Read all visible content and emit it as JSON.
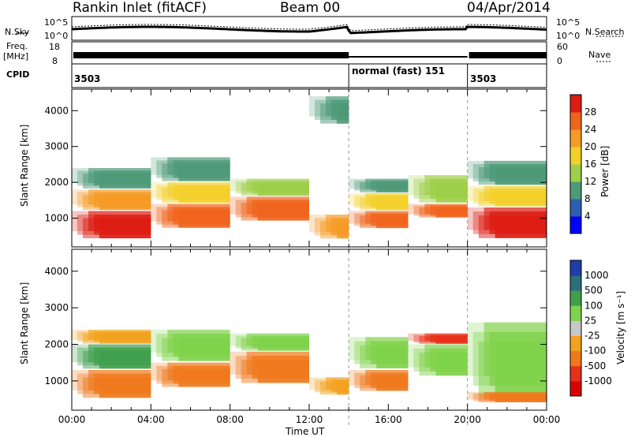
{
  "header": {
    "station": "Rankin Inlet (fitACF)",
    "beam": "Beam 00",
    "date": "04/Apr/2014"
  },
  "top_panel": {
    "nsky_label": "N.Sky",
    "nsearch_label": "N.Search",
    "left_ticks": [
      "10^5",
      "10^0"
    ],
    "right_ticks": [
      "10^5",
      "10^0"
    ],
    "freq_label_1": "Freq.",
    "freq_label_2": "[MHz]",
    "freq_ticks": [
      "18",
      "8"
    ],
    "nave_label": "Nave",
    "nave_ticks": [
      "60",
      "0"
    ],
    "cpid_label": "CPID",
    "cpid_segments": [
      {
        "label": "3503",
        "start_h": 0,
        "end_h": 14.0
      },
      {
        "label": "normal (fast) 151",
        "start_h": 14.0,
        "end_h": 20.0
      },
      {
        "label": "3503",
        "start_h": 20.0,
        "end_h": 24.0
      }
    ]
  },
  "chart_data": [
    {
      "type": "heatmap",
      "title": "",
      "xlabel": "Time UT",
      "ylabel": "Slant Range [km]",
      "xlim": [
        0,
        24
      ],
      "ylim": [
        200,
        4600
      ],
      "x_ticks": [
        "00:00",
        "04:00",
        "08:00",
        "12:00",
        "16:00",
        "20:00",
        "00:00"
      ],
      "y_ticks": [
        1000,
        2000,
        3000,
        4000
      ],
      "colorbar": {
        "label": "Power [dB]",
        "range": [
          0,
          32
        ],
        "ticks": [
          4,
          8,
          12,
          16,
          20,
          24,
          28
        ],
        "colors": [
          "#0000ff",
          "#2f5fb0",
          "#4d9a78",
          "#9ecf4a",
          "#f2d02a",
          "#f59b26",
          "#f0641c",
          "#dd1b12"
        ]
      },
      "echo_bands": [
        {
          "x0": 0.0,
          "x1": 4.0,
          "r0": 400,
          "r1": 1200,
          "value": 28
        },
        {
          "x0": 0.0,
          "x1": 4.0,
          "r0": 1200,
          "r1": 1800,
          "value": 20
        },
        {
          "x0": 0.0,
          "x1": 4.0,
          "r0": 1800,
          "r1": 2400,
          "value": 11
        },
        {
          "x0": 4.0,
          "x1": 8.0,
          "r0": 700,
          "r1": 1400,
          "value": 27
        },
        {
          "x0": 4.0,
          "x1": 8.0,
          "r0": 1400,
          "r1": 2000,
          "value": 17
        },
        {
          "x0": 4.0,
          "x1": 8.0,
          "r0": 2000,
          "r1": 2700,
          "value": 9
        },
        {
          "x0": 8.0,
          "x1": 12.0,
          "r0": 900,
          "r1": 1600,
          "value": 26
        },
        {
          "x0": 8.0,
          "x1": 12.0,
          "r0": 1600,
          "r1": 2100,
          "value": 14
        },
        {
          "x0": 12.0,
          "x1": 14.0,
          "r0": 400,
          "r1": 1100,
          "value": 20
        },
        {
          "x0": 12.0,
          "x1": 14.0,
          "r0": 3600,
          "r1": 4400,
          "value": 8
        },
        {
          "x0": 14.0,
          "x1": 17.0,
          "r0": 700,
          "r1": 1200,
          "value": 27
        },
        {
          "x0": 14.0,
          "x1": 17.0,
          "r0": 1200,
          "r1": 1700,
          "value": 17
        },
        {
          "x0": 14.0,
          "x1": 17.0,
          "r0": 1700,
          "r1": 2100,
          "value": 8
        },
        {
          "x0": 17.0,
          "x1": 20.0,
          "r0": 1000,
          "r1": 1400,
          "value": 25
        },
        {
          "x0": 17.0,
          "x1": 20.0,
          "r0": 1400,
          "r1": 2200,
          "value": 12
        },
        {
          "x0": 20.0,
          "x1": 24.0,
          "r0": 400,
          "r1": 1300,
          "value": 29
        },
        {
          "x0": 20.0,
          "x1": 24.0,
          "r0": 1300,
          "r1": 1900,
          "value": 18
        },
        {
          "x0": 20.0,
          "x1": 24.0,
          "r0": 1900,
          "r1": 2600,
          "value": 9
        }
      ]
    },
    {
      "type": "heatmap",
      "title": "",
      "xlabel": "Time UT",
      "ylabel": "Slant Range [km]",
      "xlim": [
        0,
        24
      ],
      "ylim": [
        200,
        4600
      ],
      "x_ticks": [
        "00:00",
        "04:00",
        "08:00",
        "12:00",
        "16:00",
        "20:00",
        "00:00"
      ],
      "y_ticks": [
        1000,
        2000,
        3000,
        4000
      ],
      "colorbar": {
        "label": "Velocity [m s⁻¹]",
        "tick_labels": [
          "1000",
          "500",
          "100",
          "25",
          "-25",
          "-100",
          "-500",
          "-1000"
        ],
        "colors": [
          "#1e3ea8",
          "#2d6f78",
          "#3fa04c",
          "#7fd24a",
          "#c8c8c8",
          "#f2a21e",
          "#f0781c",
          "#e83018",
          "#dd0000"
        ]
      },
      "echo_bands": [
        {
          "x0": 0.0,
          "x1": 4.0,
          "r0": 500,
          "r1": 1300,
          "value_class": "-100"
        },
        {
          "x0": 0.0,
          "x1": 4.0,
          "r0": 1300,
          "r1": 2000,
          "value_class": "100"
        },
        {
          "x0": 0.0,
          "x1": 4.0,
          "r0": 2000,
          "r1": 2400,
          "value_class": "-25"
        },
        {
          "x0": 4.0,
          "x1": 8.0,
          "r0": 800,
          "r1": 1500,
          "value_class": "-100"
        },
        {
          "x0": 4.0,
          "x1": 8.0,
          "r0": 1500,
          "r1": 2400,
          "value_class": "25"
        },
        {
          "x0": 8.0,
          "x1": 12.0,
          "r0": 900,
          "r1": 1800,
          "value_class": "-100"
        },
        {
          "x0": 8.0,
          "x1": 12.0,
          "r0": 1800,
          "r1": 2300,
          "value_class": "25"
        },
        {
          "x0": 12.0,
          "x1": 14.0,
          "r0": 600,
          "r1": 1100,
          "value_class": "-25"
        },
        {
          "x0": 14.0,
          "x1": 17.0,
          "r0": 700,
          "r1": 1300,
          "value_class": "-100"
        },
        {
          "x0": 14.0,
          "x1": 17.0,
          "r0": 1300,
          "r1": 2200,
          "value_class": "25"
        },
        {
          "x0": 17.0,
          "x1": 20.0,
          "r0": 1100,
          "r1": 2000,
          "value_class": "25"
        },
        {
          "x0": 17.0,
          "x1": 20.0,
          "r0": 2000,
          "r1": 2300,
          "value_class": "-500"
        },
        {
          "x0": 20.0,
          "x1": 24.0,
          "r0": 500,
          "r1": 2600,
          "value_class": "25"
        },
        {
          "x0": 20.0,
          "x1": 24.0,
          "r0": 400,
          "r1": 700,
          "value_class": "-100"
        }
      ]
    }
  ]
}
